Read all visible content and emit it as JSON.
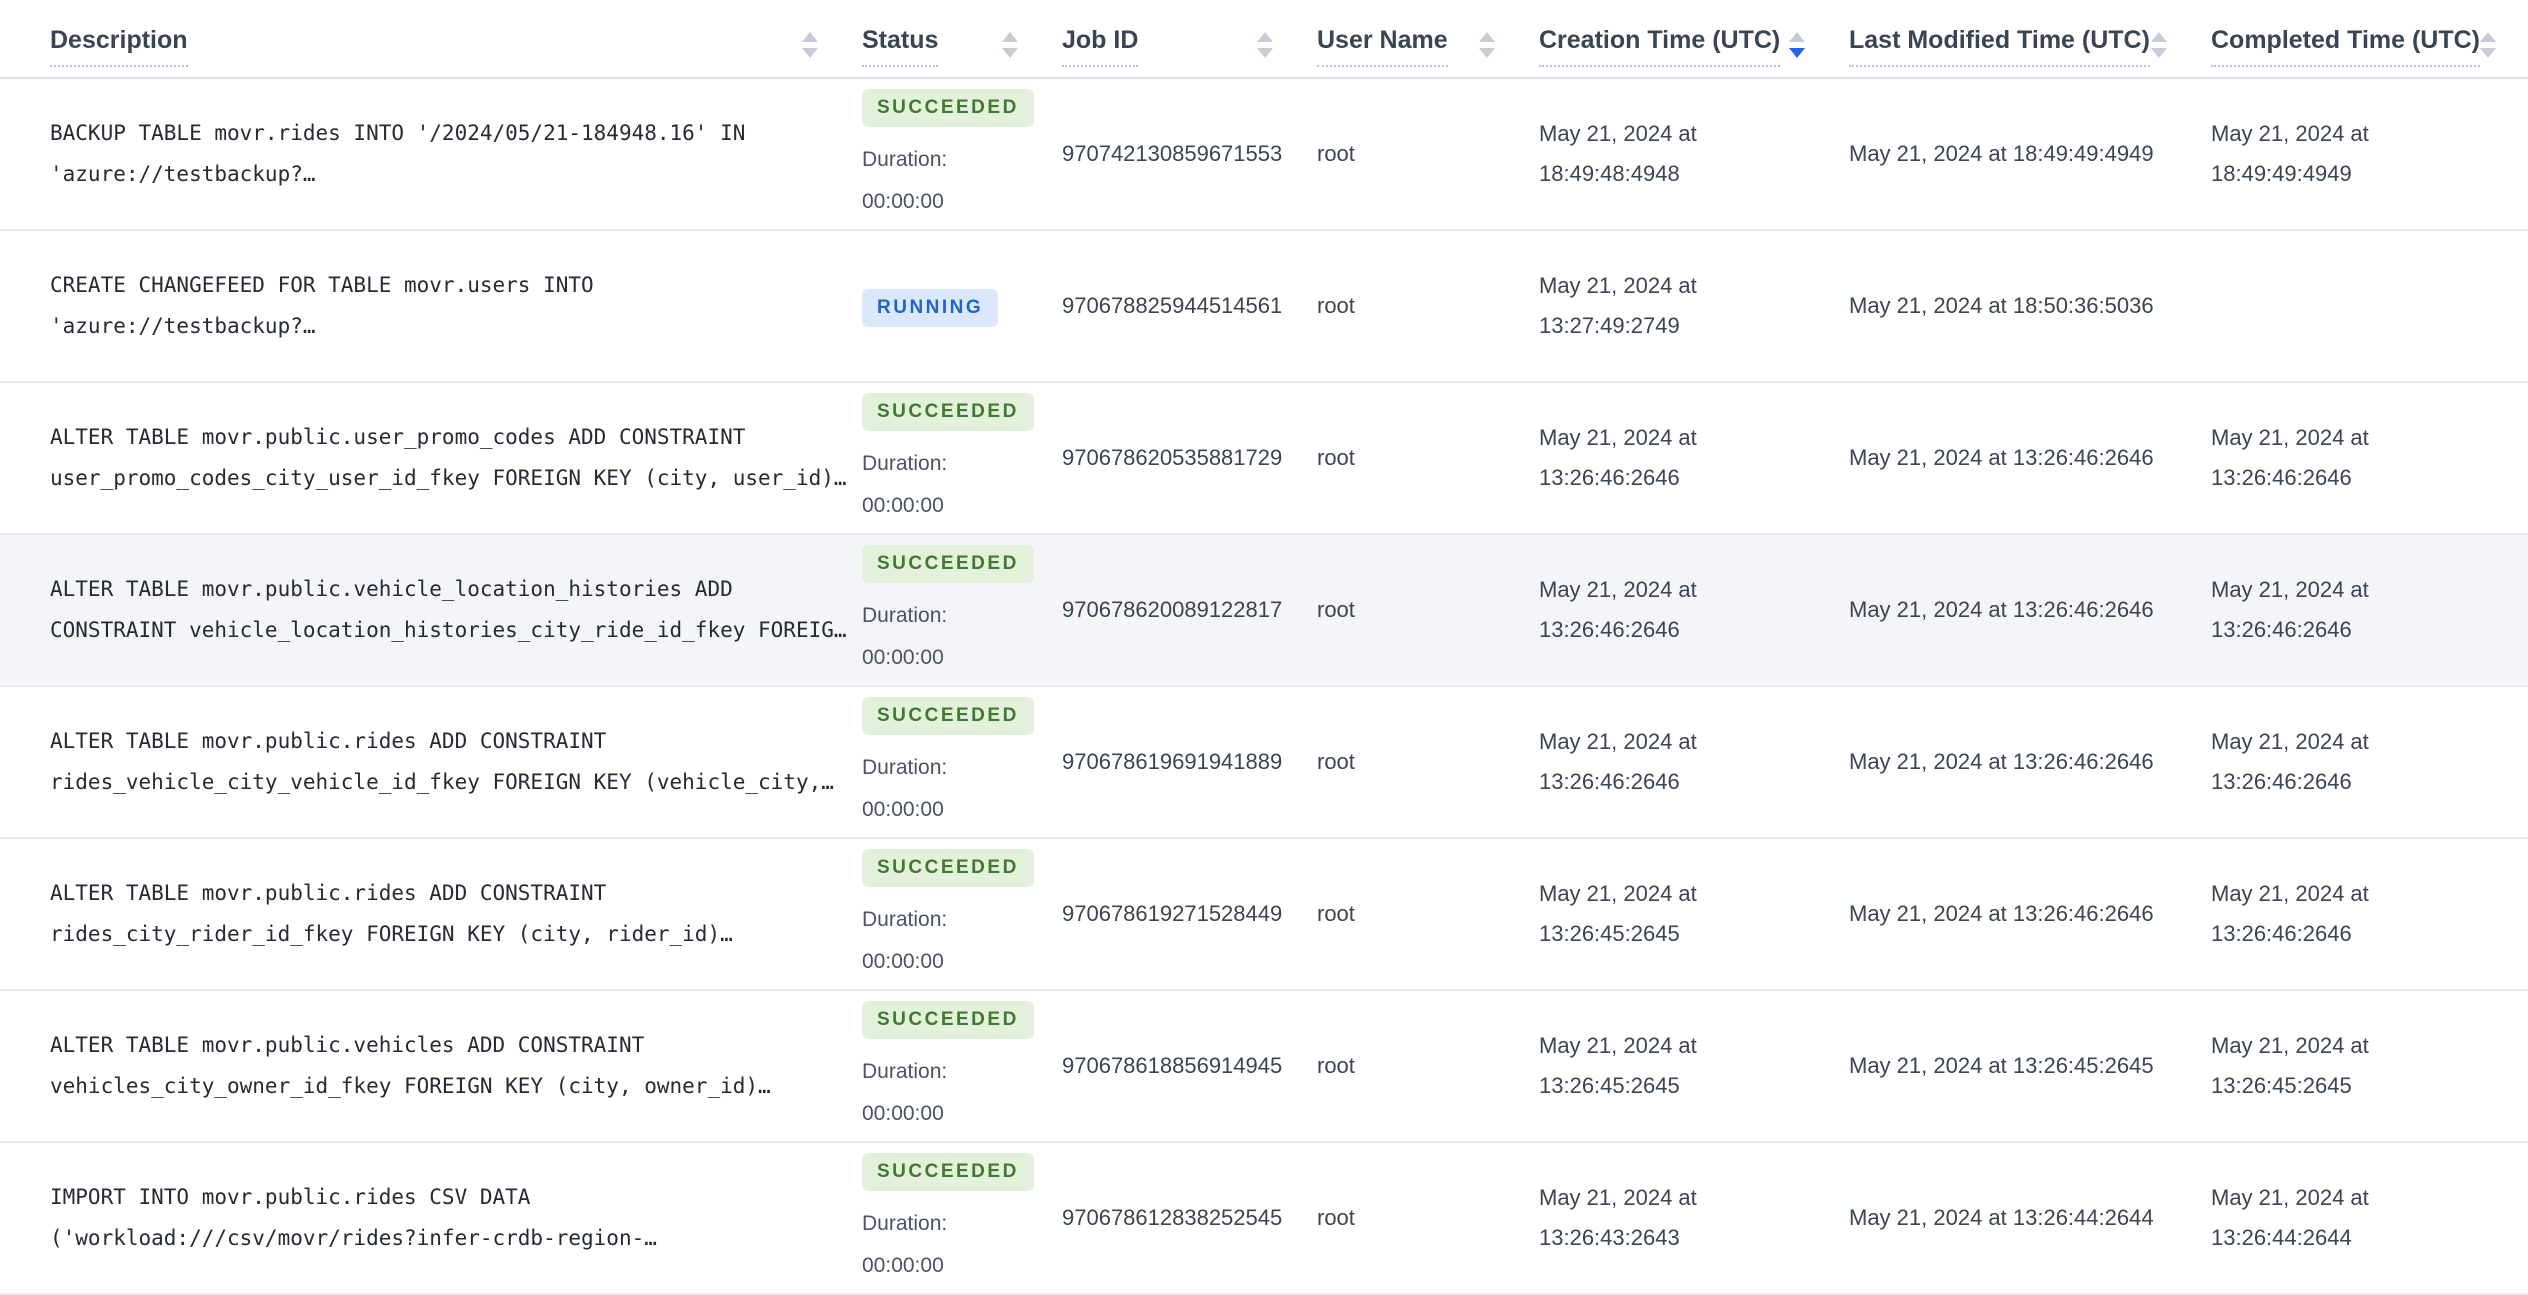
{
  "colors": {
    "succeeded_bg": "#e3f1dc",
    "succeeded_text": "#3e7b2f",
    "running_bg": "#dbe8fb",
    "running_text": "#2264c9",
    "sort_active": "#2563eb",
    "arrow_gray": "#c5cbd9",
    "header_text": "#394455",
    "body_text": "#394455",
    "mono_text": "#242b35",
    "row_highlight": "#f3f5f9",
    "separator": "#e7ebf3"
  },
  "table": {
    "duration_label": "Duration:",
    "columns": [
      {
        "label": "Description",
        "sort": null
      },
      {
        "label": "Status",
        "sort": null
      },
      {
        "label": "Job ID",
        "sort": null
      },
      {
        "label": "User Name",
        "sort": null
      },
      {
        "label": "Creation Time (UTC)",
        "sort": "desc"
      },
      {
        "label": "Last Modified Time (UTC)",
        "sort": null
      },
      {
        "label": "Completed Time (UTC)",
        "sort": null
      }
    ],
    "rows": [
      {
        "description": "BACKUP TABLE movr.rides INTO '/2024/05/21-184948.16' IN 'azure://testbackup?…",
        "status": "SUCCEEDED",
        "duration": "00:00:00",
        "job_id": "970742130859671553",
        "user_name": "root",
        "creation_time": "May 21, 2024 at 18:49:48:4948",
        "last_modified_time": "May 21, 2024 at 18:49:49:4949",
        "completed_time": "May 21, 2024 at 18:49:49:4949",
        "highlighted": false
      },
      {
        "description": "CREATE CHANGEFEED FOR TABLE movr.users INTO 'azure://testbackup?…",
        "status": "RUNNING",
        "duration": null,
        "job_id": "970678825944514561",
        "user_name": "root",
        "creation_time": "May 21, 2024 at 13:27:49:2749",
        "last_modified_time": "May 21, 2024 at 18:50:36:5036",
        "completed_time": "",
        "highlighted": false
      },
      {
        "description": "ALTER TABLE movr.public.user_promo_codes ADD CONSTRAINT user_promo_codes_city_user_id_fkey FOREIGN KEY (city, user_id)…",
        "status": "SUCCEEDED",
        "duration": "00:00:00",
        "job_id": "970678620535881729",
        "user_name": "root",
        "creation_time": "May 21, 2024 at 13:26:46:2646",
        "last_modified_time": "May 21, 2024 at 13:26:46:2646",
        "completed_time": "May 21, 2024 at 13:26:46:2646",
        "highlighted": false
      },
      {
        "description": "ALTER TABLE movr.public.vehicle_location_histories ADD CONSTRAINT vehicle_location_histories_city_ride_id_fkey FOREIG…",
        "status": "SUCCEEDED",
        "duration": "00:00:00",
        "job_id": "970678620089122817",
        "user_name": "root",
        "creation_time": "May 21, 2024 at 13:26:46:2646",
        "last_modified_time": "May 21, 2024 at 13:26:46:2646",
        "completed_time": "May 21, 2024 at 13:26:46:2646",
        "highlighted": true
      },
      {
        "description": "ALTER TABLE movr.public.rides ADD CONSTRAINT rides_vehicle_city_vehicle_id_fkey FOREIGN KEY (vehicle_city,…",
        "status": "SUCCEEDED",
        "duration": "00:00:00",
        "job_id": "970678619691941889",
        "user_name": "root",
        "creation_time": "May 21, 2024 at 13:26:46:2646",
        "last_modified_time": "May 21, 2024 at 13:26:46:2646",
        "completed_time": "May 21, 2024 at 13:26:46:2646",
        "highlighted": false
      },
      {
        "description": "ALTER TABLE movr.public.rides ADD CONSTRAINT rides_city_rider_id_fkey FOREIGN KEY (city, rider_id)…",
        "status": "SUCCEEDED",
        "duration": "00:00:00",
        "job_id": "970678619271528449",
        "user_name": "root",
        "creation_time": "May 21, 2024 at 13:26:45:2645",
        "last_modified_time": "May 21, 2024 at 13:26:46:2646",
        "completed_time": "May 21, 2024 at 13:26:46:2646",
        "highlighted": false
      },
      {
        "description": "ALTER TABLE movr.public.vehicles ADD CONSTRAINT vehicles_city_owner_id_fkey FOREIGN KEY (city, owner_id)…",
        "status": "SUCCEEDED",
        "duration": "00:00:00",
        "job_id": "970678618856914945",
        "user_name": "root",
        "creation_time": "May 21, 2024 at 13:26:45:2645",
        "last_modified_time": "May 21, 2024 at 13:26:45:2645",
        "completed_time": "May 21, 2024 at 13:26:45:2645",
        "highlighted": false
      },
      {
        "description": "IMPORT INTO movr.public.rides CSV DATA ('workload:///csv/movr/rides?infer-crdb-region-…",
        "status": "SUCCEEDED",
        "duration": "00:00:00",
        "job_id": "970678612838252545",
        "user_name": "root",
        "creation_time": "May 21, 2024 at 13:26:43:2643",
        "last_modified_time": "May 21, 2024 at 13:26:44:2644",
        "completed_time": "May 21, 2024 at 13:26:44:2644",
        "highlighted": false
      }
    ]
  }
}
